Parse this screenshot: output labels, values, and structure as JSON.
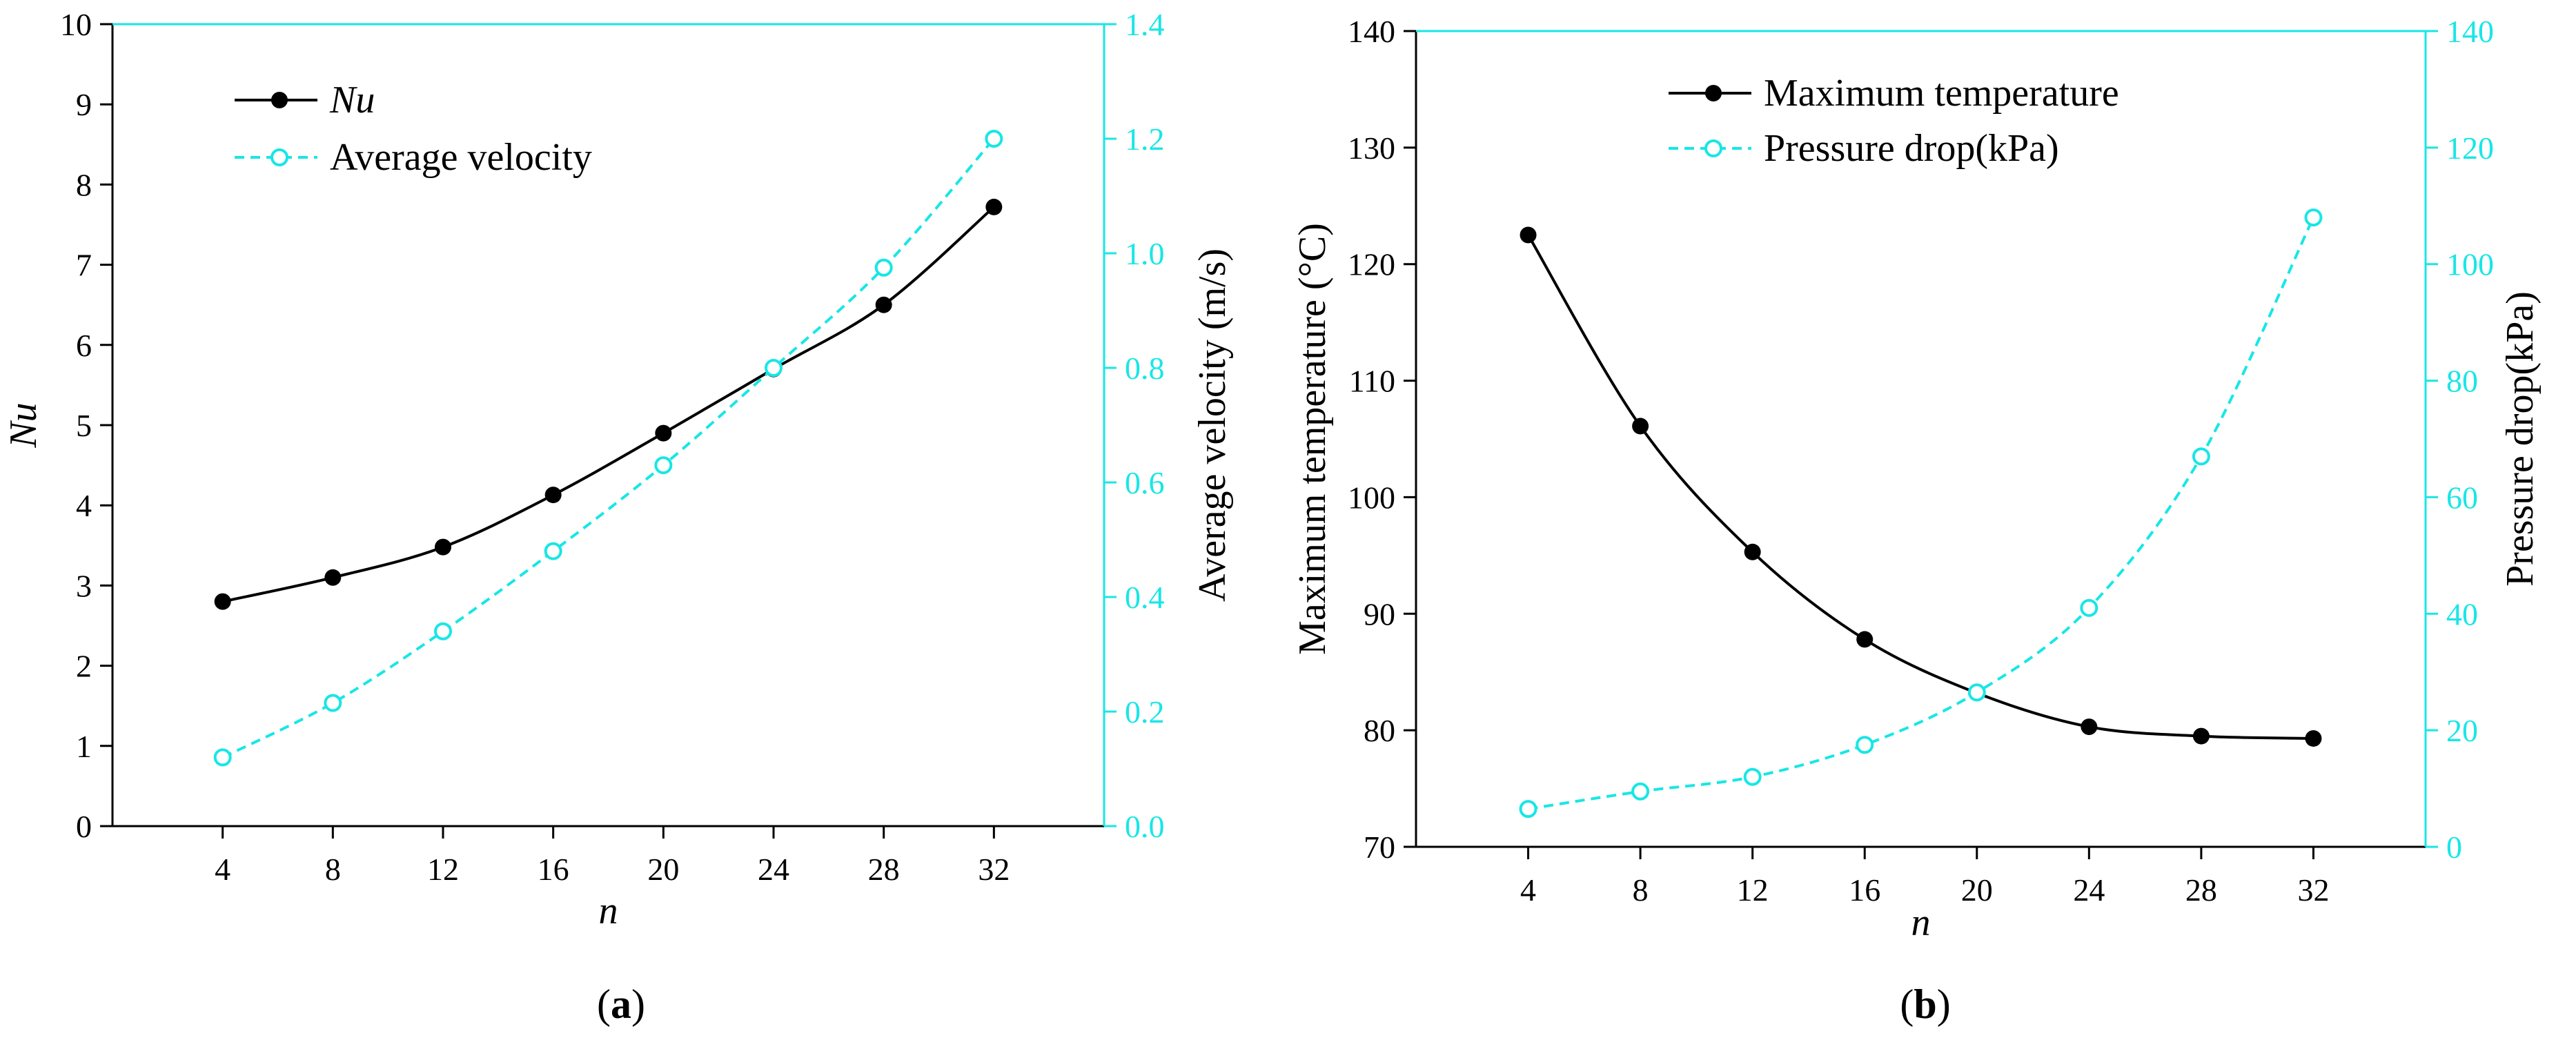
{
  "colors": {
    "black": "#000000",
    "cyan": "#19e6e6"
  },
  "chart_data": [
    {
      "type": "line",
      "panel_label": "(a)",
      "panel_letter": "a",
      "xlabel": "n",
      "ylabel_left": "Nu",
      "ylabel_right": "Average velocity (m/s)",
      "x": [
        4,
        8,
        12,
        16,
        20,
        24,
        28,
        32
      ],
      "xticks": [
        "4",
        "8",
        "12",
        "16",
        "20",
        "24",
        "28",
        "32"
      ],
      "xlim": [
        0,
        36
      ],
      "ylim_left": [
        0,
        10
      ],
      "yticks_left": [
        "0",
        "1",
        "2",
        "3",
        "4",
        "5",
        "6",
        "7",
        "8",
        "9",
        "10"
      ],
      "ylim_right": [
        0,
        1.4
      ],
      "yticks_right": [
        "0.0",
        "0.2",
        "0.4",
        "0.6",
        "0.8",
        "1.0",
        "1.2",
        "1.4"
      ],
      "legend_position": "top-left",
      "series": [
        {
          "name": "Nu",
          "axis": "left",
          "style": "solid",
          "color": "#000000",
          "values": [
            2.8,
            3.1,
            3.48,
            4.13,
            4.9,
            5.7,
            6.5,
            7.72
          ]
        },
        {
          "name": "Average velocity",
          "axis": "right",
          "style": "dashed",
          "color": "#19e6e6",
          "values": [
            0.12,
            0.215,
            0.34,
            0.48,
            0.63,
            0.8,
            0.975,
            1.2
          ]
        }
      ]
    },
    {
      "type": "line",
      "panel_label": "(b)",
      "panel_letter": "b",
      "xlabel": "n",
      "ylabel_left": "Maximum temperature (°C)",
      "ylabel_right": "Pressure drop(kPa)",
      "x": [
        4,
        8,
        12,
        16,
        20,
        24,
        28,
        32
      ],
      "xticks": [
        "4",
        "8",
        "12",
        "16",
        "20",
        "24",
        "28",
        "32"
      ],
      "xlim": [
        0,
        36
      ],
      "ylim_left": [
        70,
        140
      ],
      "yticks_left": [
        "70",
        "80",
        "90",
        "100",
        "110",
        "120",
        "130",
        "140"
      ],
      "ylim_right": [
        0,
        140
      ],
      "yticks_right": [
        "0",
        "20",
        "40",
        "60",
        "80",
        "100",
        "120",
        "140"
      ],
      "legend_position": "top-center",
      "series": [
        {
          "name": "Maximum temperature",
          "axis": "left",
          "style": "solid",
          "color": "#000000",
          "values": [
            122.5,
            106.1,
            95.3,
            87.8,
            83.2,
            80.3,
            79.5,
            79.3
          ]
        },
        {
          "name": "Pressure drop(kPa)",
          "axis": "right",
          "style": "dashed",
          "color": "#19e6e6",
          "values": [
            6.5,
            9.5,
            12.0,
            17.5,
            26.5,
            41.0,
            67.0,
            108.0
          ]
        }
      ]
    }
  ]
}
